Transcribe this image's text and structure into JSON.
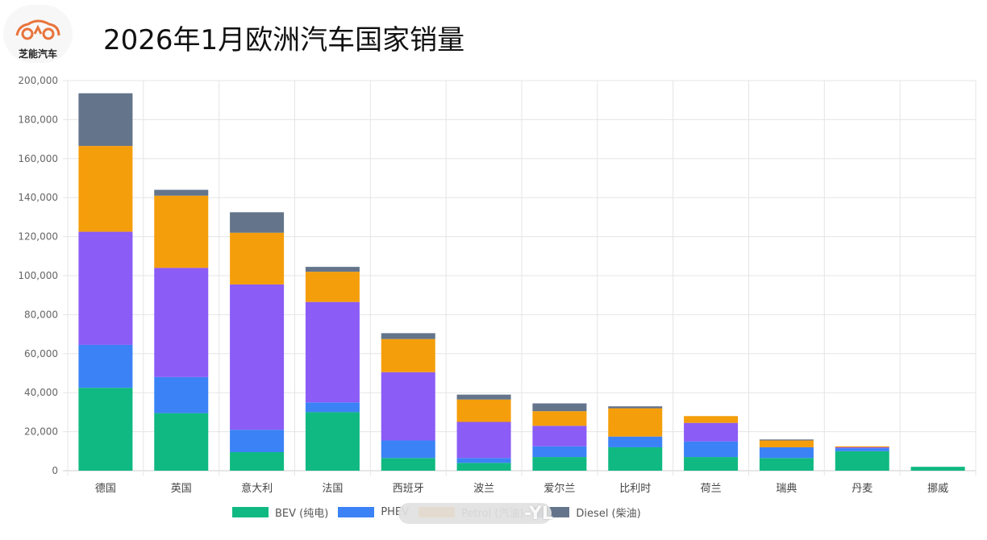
{
  "header": {
    "title": "2026年1月欧洲汽车国家销量",
    "logo_text": "芝能汽车"
  },
  "watermark_text": "-YL",
  "colors": {
    "BEV": "#10b981",
    "PHEV": "#3b82f6",
    "HEV": "#8b5cf6",
    "Petrol": "#f59e0b",
    "Diesel": "#64748b",
    "grid": "#e5e5e5",
    "logo": "#e8743b"
  },
  "chart_data": {
    "type": "bar",
    "stacked": true,
    "title": "2026年1月欧洲汽车国家销量",
    "categories": [
      "德国",
      "英国",
      "意大利",
      "法国",
      "西班牙",
      "波兰",
      "爱尔兰",
      "比利时",
      "荷兰",
      "瑞典",
      "丹麦",
      "挪威"
    ],
    "ylim": [
      0,
      200000
    ],
    "yticks": [
      "0",
      "20,000",
      "40,000",
      "60,000",
      "80,000",
      "100,000",
      "120,000",
      "140,000",
      "160,000",
      "180,000",
      "200,000"
    ],
    "grid": true,
    "legend_position": "bottom",
    "series": [
      {
        "key": "BEV",
        "name": "BEV (纯电)",
        "values": [
          42500,
          29500,
          9500,
          30000,
          6500,
          4000,
          7000,
          12000,
          7000,
          6500,
          10000,
          2000
        ]
      },
      {
        "key": "PHEV",
        "name": "PHEV",
        "values": [
          22000,
          18500,
          11500,
          5000,
          9000,
          2500,
          5500,
          5500,
          8000,
          5500,
          1500,
          0
        ]
      },
      {
        "key": "HEV",
        "name": "",
        "values": [
          58000,
          56000,
          74500,
          51500,
          35000,
          18500,
          10500,
          0,
          9500,
          0,
          500,
          0
        ]
      },
      {
        "key": "Petrol",
        "name": "Petrol (汽油)",
        "values": [
          44000,
          37000,
          26500,
          15500,
          17000,
          11500,
          7500,
          14500,
          3500,
          3500,
          500,
          0
        ]
      },
      {
        "key": "Diesel",
        "name": "Diesel (柴油)",
        "values": [
          27000,
          3000,
          10500,
          2500,
          3000,
          2500,
          4000,
          1000,
          0,
          500,
          0,
          0
        ]
      }
    ]
  }
}
